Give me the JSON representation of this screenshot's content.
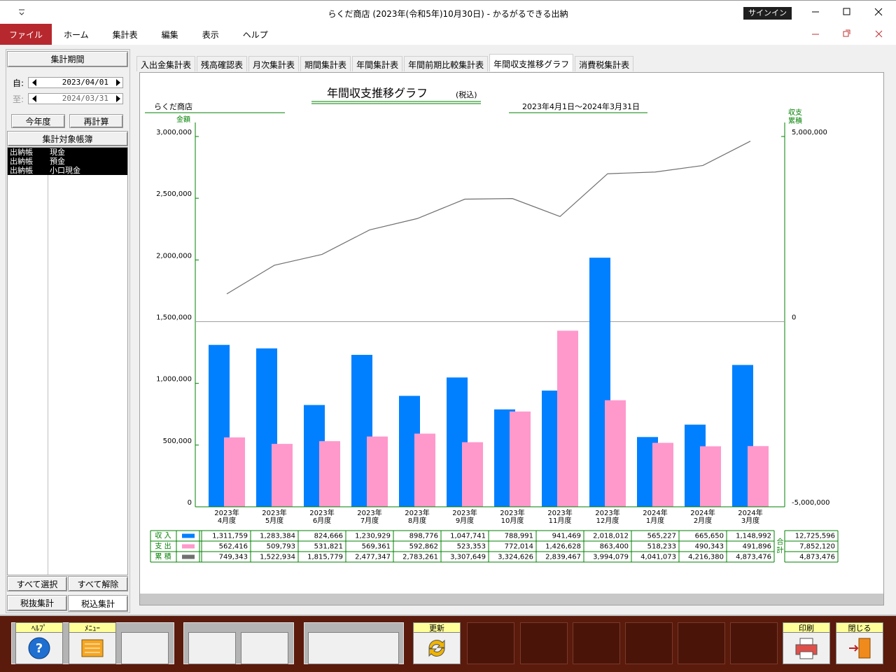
{
  "window": {
    "title": "らくだ商店 (2023年(令和5年)10月30日)  -  かるがるできる出納",
    "signin": "サインイン"
  },
  "menu": [
    "ファイル",
    "ホーム",
    "集計表",
    "編集",
    "表示",
    "ヘルプ"
  ],
  "sidebar": {
    "period_button": "集計期間",
    "from_label": "自:",
    "from_date": "2023/04/01",
    "to_label": "至:",
    "to_date": "2024/03/31",
    "this_year_button": "今年度",
    "recalc_button": "再計算",
    "books_header": "集計対象帳簿",
    "books": [
      [
        "出納帳",
        "現金"
      ],
      [
        "出納帳",
        "預金"
      ],
      [
        "出納帳",
        "小口現金"
      ]
    ],
    "select_all": "すべて選択",
    "deselect_all": "すべて解除",
    "tax_excluded": "税抜集計",
    "tax_included": "税込集計"
  },
  "tabs": [
    "入出金集計表",
    "残高確認表",
    "月次集計表",
    "期間集計表",
    "年間集計表",
    "年間前期比較集計表",
    "年間収支推移グラフ",
    "消費税集計表"
  ],
  "toolbar": {
    "help": "ﾍﾙﾌﾟ",
    "menu": "ﾒﾆｭｰ",
    "refresh": "更新",
    "print": "印刷",
    "close": "閉じる"
  },
  "chart_data": {
    "type": "bar",
    "title": "年間収支推移グラフ",
    "subtitle": "(税込)",
    "shop": "らくだ商店",
    "period": "2023年4月1日～2024年3月31日",
    "y_label": "金額",
    "y2_label": [
      "収支",
      "累積"
    ],
    "total_header": "合計",
    "grid": false,
    "zero_line": true,
    "categories": [
      [
        "2023年",
        "4月度"
      ],
      [
        "2023年",
        "5月度"
      ],
      [
        "2023年",
        "6月度"
      ],
      [
        "2023年",
        "7月度"
      ],
      [
        "2023年",
        "8月度"
      ],
      [
        "2023年",
        "9月度"
      ],
      [
        "2023年",
        "10月度"
      ],
      [
        "2023年",
        "11月度"
      ],
      [
        "2023年",
        "12月度"
      ],
      [
        "2024年",
        "1月度"
      ],
      [
        "2024年",
        "2月度"
      ],
      [
        "2024年",
        "3月度"
      ]
    ],
    "ylim": [
      0,
      3000000
    ],
    "yticks": [
      {
        "value": 0,
        "label": "0"
      },
      {
        "value": 500000,
        "label": "500,000"
      },
      {
        "value": 1000000,
        "label": "1,000,000"
      },
      {
        "value": 1500000,
        "label": "1,500,000"
      },
      {
        "value": 2000000,
        "label": "2,000,000"
      },
      {
        "value": 2500000,
        "label": "2,500,000"
      },
      {
        "value": 3000000,
        "label": "3,000,000"
      }
    ],
    "y2lim": [
      -5000000,
      5000000
    ],
    "y2ticks": [
      {
        "value": -5000000,
        "label": "-5,000,000"
      },
      {
        "value": 0,
        "label": "0"
      },
      {
        "value": 5000000,
        "label": "5,000,000"
      }
    ],
    "series": [
      {
        "name": "収 入",
        "type": "bar",
        "color": "#0080ff",
        "values": [
          1311759,
          1283384,
          824666,
          1230929,
          898776,
          1047741,
          788991,
          941469,
          2018012,
          565227,
          665650,
          1148992
        ],
        "value_labels": [
          "1,311,759",
          "1,283,384",
          "824,666",
          "1,230,929",
          "898,776",
          "1,047,741",
          "788,991",
          "941,469",
          "2,018,012",
          "565,227",
          "665,650",
          "1,148,992"
        ],
        "total_label": "12,725,596"
      },
      {
        "name": "支 出",
        "type": "bar",
        "color": "#ff99cc",
        "values": [
          562416,
          509793,
          531821,
          569361,
          592862,
          523353,
          772014,
          1426628,
          863400,
          518233,
          490343,
          491896
        ],
        "value_labels": [
          "562,416",
          "509,793",
          "531,821",
          "569,361",
          "592,862",
          "523,353",
          "772,014",
          "1,426,628",
          "863,400",
          "518,233",
          "490,343",
          "491,896"
        ],
        "total_label": "7,852,120"
      },
      {
        "name": "累 積",
        "type": "line",
        "axis": "y2",
        "color": "#707070",
        "values": [
          749343,
          1522934,
          1815779,
          2477347,
          2783261,
          3307649,
          3324626,
          2839467,
          3994079,
          4041073,
          4216380,
          4873476
        ],
        "value_labels": [
          "749,343",
          "1,522,934",
          "1,815,779",
          "2,477,347",
          "2,783,261",
          "3,307,649",
          "3,324,626",
          "2,839,467",
          "3,994,079",
          "4,041,073",
          "4,216,380",
          "4,873,476"
        ],
        "total_label": "4,873,476"
      }
    ]
  }
}
